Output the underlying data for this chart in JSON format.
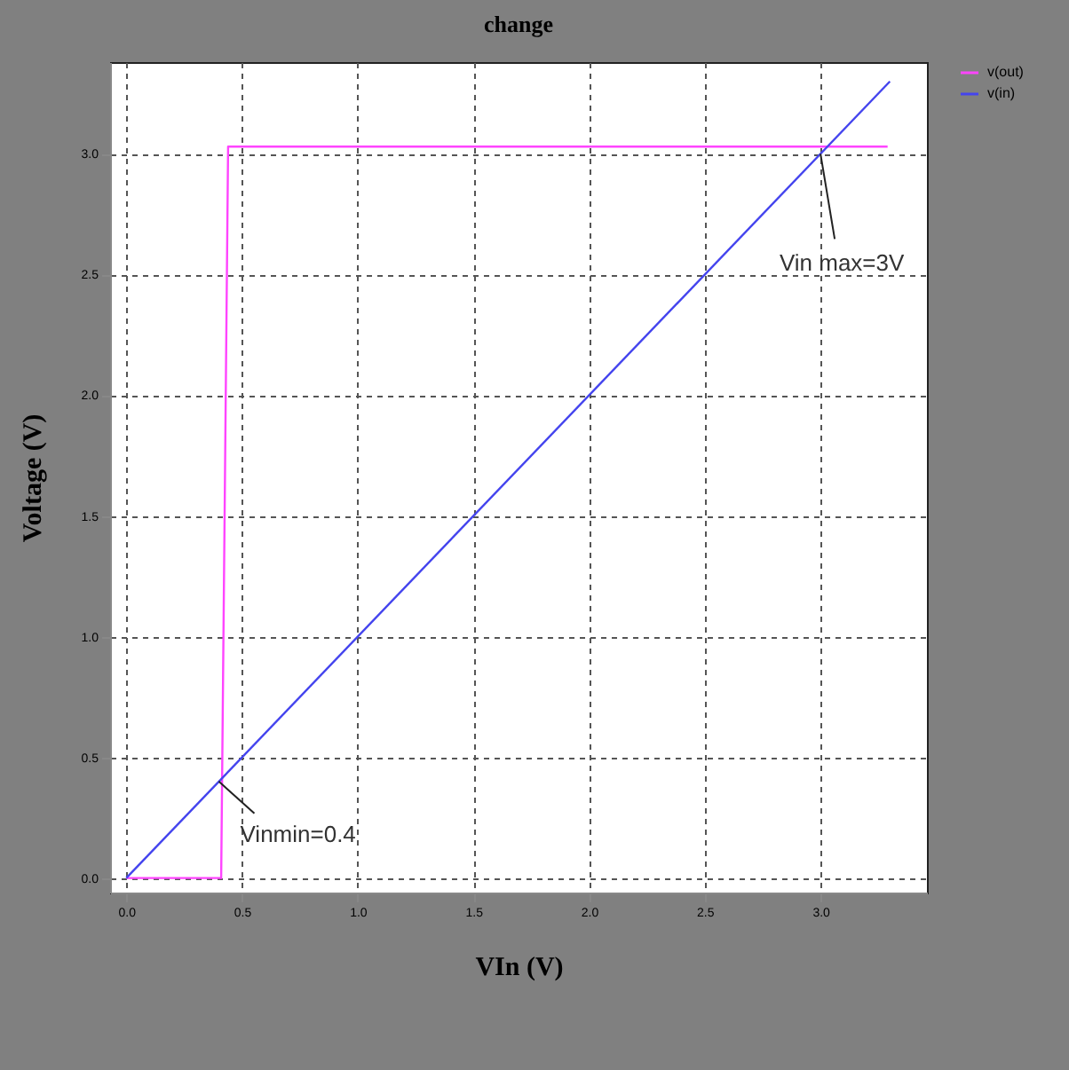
{
  "chart_data": {
    "type": "line",
    "title": "change",
    "xlabel": "VIn (V)",
    "ylabel": "Voltage (V)",
    "xlim": [
      -0.07,
      3.46
    ],
    "ylim": [
      -0.06,
      3.38
    ],
    "xticks": [
      {
        "value": 0,
        "label": "0.0"
      },
      {
        "value": 0.5,
        "label": "0.5"
      },
      {
        "value": 1,
        "label": "1.0"
      },
      {
        "value": 1.5,
        "label": "1.5"
      },
      {
        "value": 2,
        "label": "2.0"
      },
      {
        "value": 2.5,
        "label": "2.5"
      },
      {
        "value": 3,
        "label": "3.0"
      }
    ],
    "yticks": [
      {
        "value": 0,
        "label": "0.0"
      },
      {
        "value": 0.5,
        "label": "0.5"
      },
      {
        "value": 1,
        "label": "1.0"
      },
      {
        "value": 1.5,
        "label": "1.5"
      },
      {
        "value": 2,
        "label": "2.0"
      },
      {
        "value": 2.5,
        "label": "2.5"
      },
      {
        "value": 3,
        "label": "3.0"
      }
    ],
    "series": [
      {
        "name": "v(out)",
        "color": "#ff44ff",
        "x": [
          0,
          0.41,
          0.44,
          3.29
        ],
        "values": [
          0,
          0,
          3.03,
          3.03
        ]
      },
      {
        "name": "v(in)",
        "color": "#4444ee",
        "x": [
          0,
          3.3
        ],
        "values": [
          0,
          3.3
        ]
      }
    ],
    "annotations": [
      {
        "text": "Vinmin=0.4",
        "x": 0.4,
        "y": 0.4
      },
      {
        "text": "Vin max=3V",
        "x": 3,
        "y": 3
      }
    ],
    "grid": true,
    "line_style": "solid",
    "legend": "top right"
  }
}
